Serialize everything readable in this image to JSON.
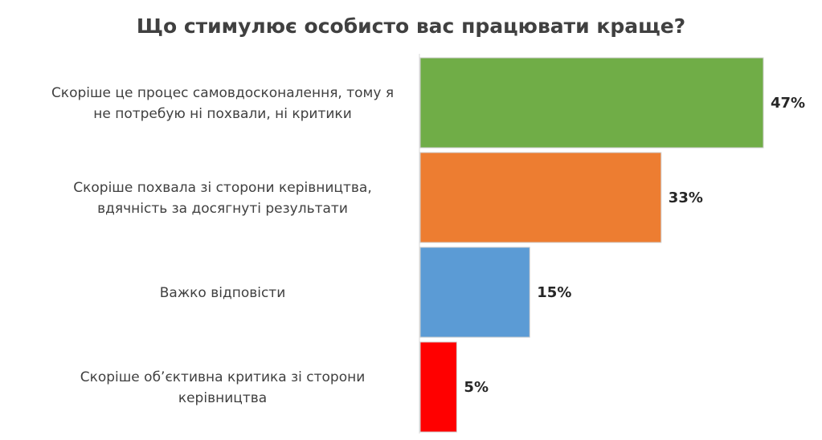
{
  "chart_data": {
    "type": "bar",
    "orientation": "horizontal",
    "title": "Що стимулює особисто вас працювати краще?",
    "categories": [
      [
        "Скоріше це процес самовдосконалення, тому я",
        "не потребую ні похвали, ні критики"
      ],
      [
        "Скоріше похвала зі сторони керівництва,",
        "вдячність за досягнуті результати"
      ],
      [
        "Важко відповісти"
      ],
      [
        "Скоріше об’єктивна критика зі сторони",
        "керівництва"
      ]
    ],
    "values": [
      47,
      33,
      15,
      5
    ],
    "data_labels": [
      "47%",
      "33%",
      "15%",
      "5%"
    ],
    "colors": [
      "#70ad47",
      "#ed7d31",
      "#5b9bd5",
      "#ff0000"
    ],
    "xlim": [
      0,
      100
    ],
    "grid": false,
    "legend": "none"
  }
}
